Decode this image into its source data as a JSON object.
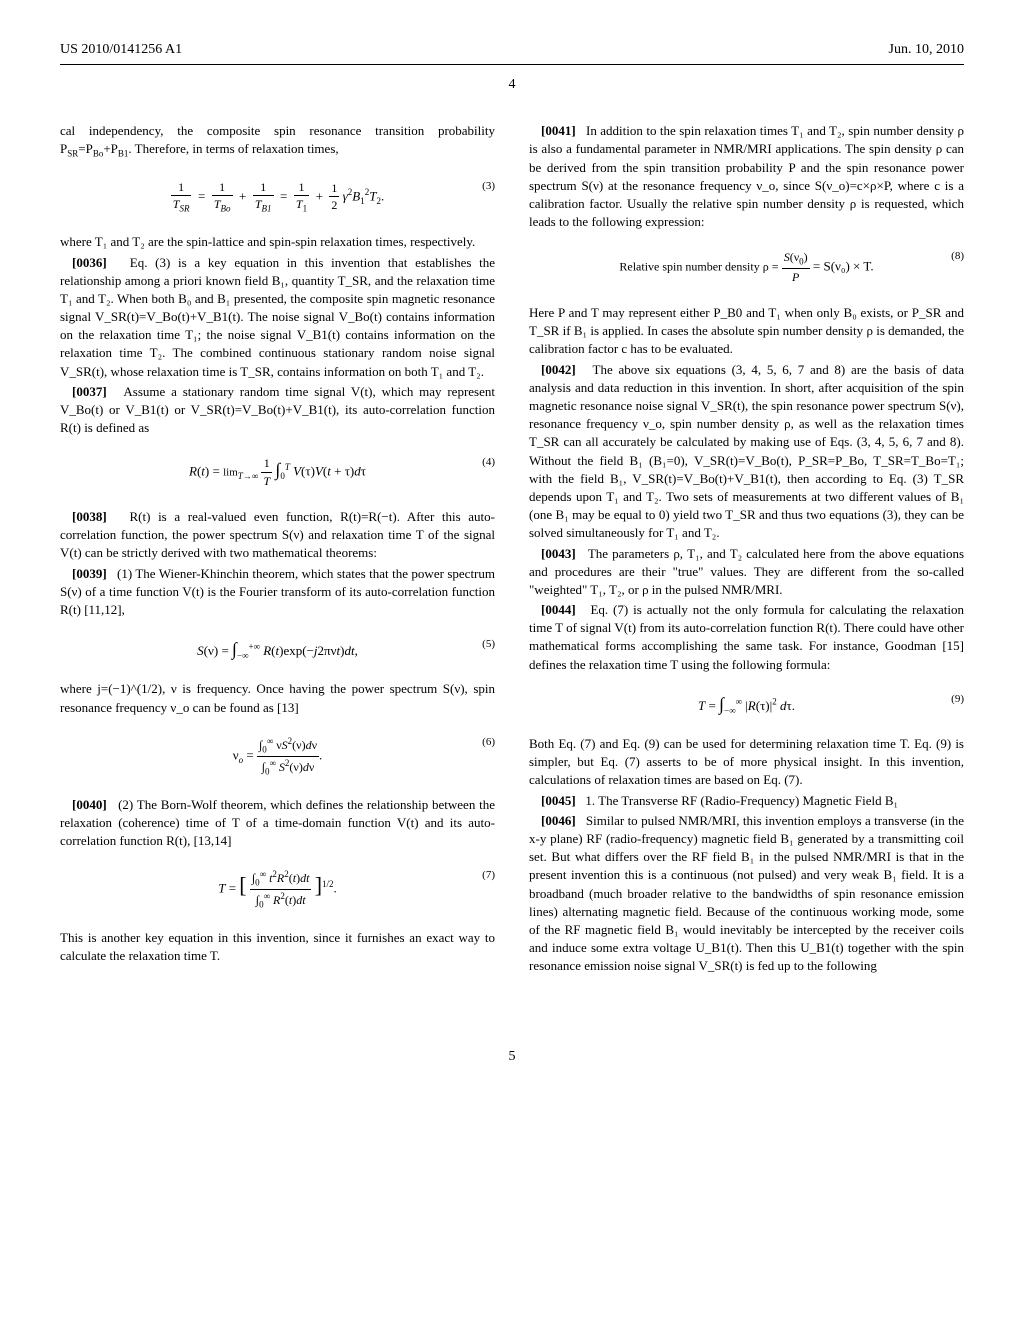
{
  "header": {
    "pub_number": "US 2010/0141256 A1",
    "pub_date": "Jun. 10, 2010",
    "page_label": "4"
  },
  "left_column": {
    "p0": "cal independency, the composite spin resonance transition probability P",
    "p0_sub1": "SR",
    "p0_mid": "=P",
    "p0_sub2": "Bo",
    "p0_mid2": "+P",
    "p0_sub3": "B1",
    "p0_end": ". Therefore, in terms of relaxation times,",
    "eq3_num": "(3)",
    "p1": "where T₁ and T₂ are the spin-lattice and spin-spin relaxation times, respectively.",
    "para36_num": "[0036]",
    "para36": "Eq. (3) is a key equation in this invention that establishes the relationship among a priori known field B₁, quantity T_SR, and the relaxation time T₁ and T₂. When both B₀ and B₁ presented, the composite spin magnetic resonance signal V_SR(t)=V_Bo(t)+V_B1(t). The noise signal V_Bo(t) contains information on the relaxation time T₁; the noise signal V_B1(t) contains information on the relaxation time T₂. The combined continuous stationary random noise signal V_SR(t), whose relaxation time is T_SR, contains information on both T₁ and T₂.",
    "para37_num": "[0037]",
    "para37": "Assume a stationary random time signal V(t), which may represent V_Bo(t) or V_B1(t) or V_SR(t)=V_Bo(t)+V_B1(t), its auto-correlation function R(t) is defined as",
    "eq4_num": "(4)",
    "para38_num": "[0038]",
    "para38": "R(t) is a real-valued even function, R(t)=R(−t). After this auto-correlation function, the power spectrum S(ν) and relaxation time T of the signal V(t) can be strictly derived with two mathematical theorems:",
    "para39_num": "[0039]",
    "para39": "(1) The Wiener-Khinchin theorem, which states that the power spectrum S(ν) of a time function V(t) is the Fourier transform of its auto-correlation function R(t) [11,12],",
    "eq5_num": "(5)",
    "p5text": "where j=(−1)^(1/2), ν is frequency. Once having the power spectrum S(ν), spin resonance frequency ν_o can be found as [13]",
    "eq6_num": "(6)",
    "para40_num": "[0040]",
    "para40": "(2) The Born-Wolf theorem, which defines the relationship between the relaxation (coherence) time of T of a time-domain function V(t) and its auto-correlation function R(t), [13,14]",
    "eq7_num": "(7)",
    "p7text": "This is another key equation in this invention, since it furnishes an exact way to calculate the relaxation time T."
  },
  "right_column": {
    "para41_num": "[0041]",
    "para41": "In addition to the spin relaxation times T₁ and T₂, spin number density ρ is also a fundamental parameter in NMR/MRI applications. The spin density ρ can be derived from the spin transition probability P and the spin resonance power spectrum S(ν) at the resonance frequency ν_o, since S(ν_o)=c×ρ×P, where c is a calibration factor. Usually the relative spin number density ρ is requested, which leads to the following expression:",
    "eq8_label": "Relative spin number density ρ =",
    "eq8_rhs": "= S(ν₀) × T.",
    "eq8_num": "(8)",
    "p8text": "Here P and T may represent either P_B0 and T₁ when only B₀ exists, or P_SR and T_SR if B₁ is applied. In cases the absolute spin number density ρ is demanded, the calibration factor c has to be evaluated.",
    "para42_num": "[0042]",
    "para42": "The above six equations (3, 4, 5, 6, 7 and 8) are the basis of data analysis and data reduction in this invention. In short, after acquisition of the spin magnetic resonance noise signal V_SR(t), the spin resonance power spectrum S(ν), resonance frequency ν_o, spin number density ρ, as well as the relaxation times T_SR can all accurately be calculated by making use of Eqs. (3, 4, 5, 6, 7 and 8). Without the field B₁ (B₁=0), V_SR(t)=V_Bo(t), P_SR=P_Bo, T_SR=T_Bo=T₁; with the field B₁, V_SR(t)=V_Bo(t)+V_B1(t), then according to Eq. (3) T_SR depends upon T₁ and T₂. Two sets of measurements at two different values of B₁ (one B₁ may be equal to 0) yield two T_SR and thus two equations (3), they can be solved simultaneously for T₁ and T₂.",
    "para43_num": "[0043]",
    "para43": "The parameters ρ, T₁, and T₂ calculated here from the above equations and procedures are their \"true\" values. They are different from the so-called \"weighted\" T₁, T₂, or ρ in the pulsed NMR/MRI.",
    "para44_num": "[0044]",
    "para44": "Eq. (7) is actually not the only formula for calculating the relaxation time T of signal V(t) from its auto-correlation function R(t). There could have other mathematical forms accomplishing the same task. For instance, Goodman [15] defines the relaxation time T using the following formula:",
    "eq9_num": "(9)",
    "p9text": "Both Eq. (7) and Eq. (9) can be used for determining relaxation time T. Eq. (9) is simpler, but Eq. (7) asserts to be of more physical insight. In this invention, calculations of relaxation times are based on Eq. (7).",
    "para45_num": "[0045]",
    "para45": "1. The Transverse RF (Radio-Frequency) Magnetic Field B₁",
    "para46_num": "[0046]",
    "para46": "Similar to pulsed NMR/MRI, this invention employs a transverse (in the x-y plane) RF (radio-frequency) magnetic field B₁ generated by a transmitting coil set. But what differs over the RF field B₁ in the pulsed NMR/MRI is that in the present invention this is a continuous (not pulsed) and very weak B₁ field. It is a broadband (much broader relative to the bandwidths of spin resonance emission lines) alternating magnetic field. Because of the continuous working mode, some of the RF magnetic field B₁ would inevitably be intercepted by the receiver coils and induce some extra voltage U_B1(t). Then this U_B1(t) together with the spin resonance emission noise signal V_SR(t) is fed up to the following"
  },
  "footer": {
    "pagenum": "5"
  }
}
